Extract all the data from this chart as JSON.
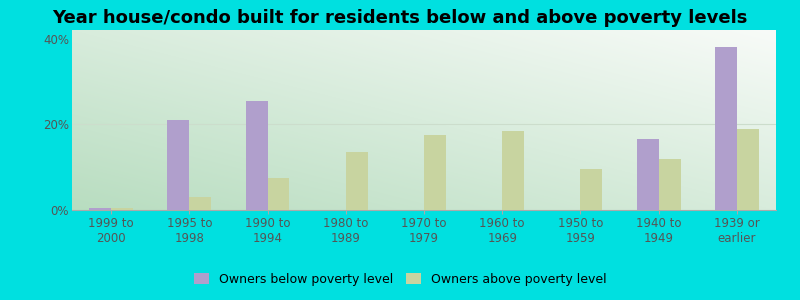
{
  "title": "Year house/condo built for residents below and above poverty levels",
  "categories": [
    "1999 to\n2000",
    "1995 to\n1998",
    "1990 to\n1994",
    "1980 to\n1989",
    "1970 to\n1979",
    "1960 to\n1969",
    "1950 to\n1959",
    "1940 to\n1949",
    "1939 or\nearlier"
  ],
  "below_poverty": [
    0.4,
    21.0,
    25.5,
    0.0,
    0.0,
    0.0,
    0.0,
    16.5,
    38.0
  ],
  "above_poverty": [
    0.4,
    3.0,
    7.5,
    13.5,
    17.5,
    18.5,
    9.5,
    12.0,
    19.0
  ],
  "below_color": "#b09fcc",
  "above_color": "#c8d4a0",
  "background_outer": "#00e0e0",
  "ylim": [
    0,
    42
  ],
  "yticks": [
    0,
    20,
    40
  ],
  "ytick_labels": [
    "0%",
    "20%",
    "40%"
  ],
  "title_fontsize": 13,
  "tick_fontsize": 8.5,
  "legend_below_label": "Owners below poverty level",
  "legend_above_label": "Owners above poverty level",
  "bar_width": 0.28,
  "grad_bottom_left": "#b8ddc0",
  "grad_top_right": "#f5fbf5"
}
